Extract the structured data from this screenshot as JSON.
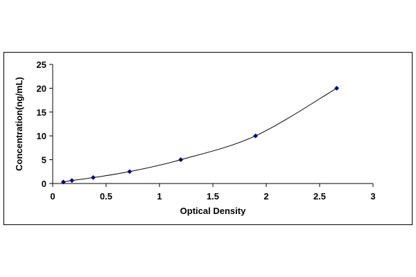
{
  "chart_data": {
    "type": "scatter",
    "title": "",
    "xlabel": "Optical Density",
    "ylabel": "Concentration(ng/mL)",
    "xlim": [
      0,
      3
    ],
    "ylim": [
      0,
      25
    ],
    "x_ticks": [
      "0",
      "0.5",
      "1",
      "1.5",
      "2",
      "2.5",
      "3"
    ],
    "y_ticks": [
      "0",
      "5",
      "10",
      "15",
      "20",
      "25"
    ],
    "grid": false,
    "legend": "none",
    "trendline": "smooth curve",
    "marker": "diamond",
    "marker_color": "#00007a",
    "line_color": "#000000",
    "x": [
      0.1,
      0.18,
      0.38,
      0.72,
      1.2,
      1.9,
      2.66
    ],
    "y": [
      0.31,
      0.63,
      1.25,
      2.5,
      5,
      10,
      20
    ]
  }
}
